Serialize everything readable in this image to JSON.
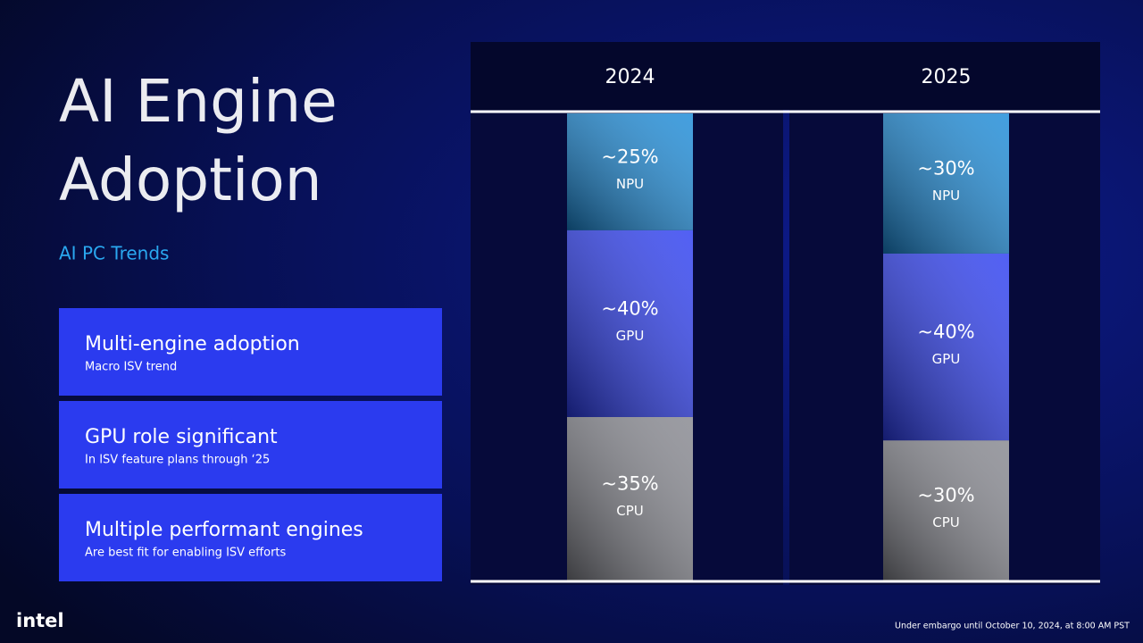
{
  "title_lines": [
    "AI Engine",
    "Adoption"
  ],
  "subtitle": "AI PC Trends",
  "cards": [
    {
      "heading": "Multi-engine adoption",
      "text": "Macro ISV trend"
    },
    {
      "heading": "GPU role significant",
      "text": "In ISV feature plans through ‘25"
    },
    {
      "heading": "Multiple performant engines",
      "text": "Are best fit for enabling ISV efforts"
    }
  ],
  "chart_data": {
    "type": "stacked-bar",
    "categories": [
      "2024",
      "2025"
    ],
    "series": [
      {
        "name": "CPU",
        "color": "#85868e",
        "values": [
          35,
          30
        ],
        "value_labels": [
          "~35%",
          "~30%"
        ]
      },
      {
        "name": "GPU",
        "color": "#2c3df2",
        "values": [
          40,
          40
        ],
        "value_labels": [
          "~40%",
          "~40%"
        ]
      },
      {
        "name": "NPU",
        "color": "#1a8ad8",
        "values": [
          25,
          30
        ],
        "value_labels": [
          "~25%",
          "~30%"
        ]
      }
    ]
  },
  "logo": "intel",
  "footer": "Under embargo until October 10, 2024, at 8:00 AM PST"
}
